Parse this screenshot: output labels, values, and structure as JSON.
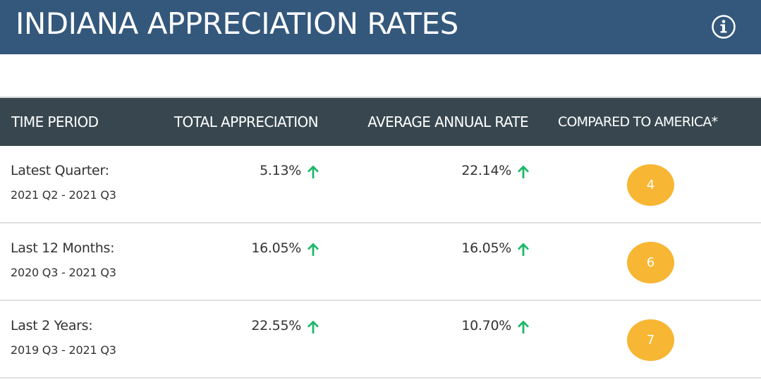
{
  "header": {
    "title": "INDIANA APPRECIATION RATES",
    "info_icon": "info-circle-icon"
  },
  "table": {
    "columns": [
      "TIME PERIOD",
      "TOTAL APPRECIATION",
      "AVERAGE ANNUAL RATE",
      "COMPARED TO AMERICA*"
    ],
    "rows": [
      {
        "period": "Latest Quarter:",
        "range": "2021 Q2 - 2021 Q3",
        "total": "5.13%",
        "total_trend": "arrow-up-icon",
        "rate": "22.14%",
        "rate_trend": "arrow-up-icon",
        "rank": "4"
      },
      {
        "period": "Last 12 Months:",
        "range": "2020 Q3 - 2021 Q3",
        "total": "16.05%",
        "total_trend": "arrow-up-icon",
        "rate": "16.05%",
        "rate_trend": "arrow-up-icon",
        "rank": "6"
      },
      {
        "period": "Last 2 Years:",
        "range": "2019 Q3 - 2021 Q3",
        "total": "22.55%",
        "total_trend": "arrow-up-icon",
        "rate": "10.70%",
        "rate_trend": "arrow-up-icon",
        "rank": "7"
      }
    ]
  },
  "colors": {
    "title_bar": "#34587c",
    "table_header": "#38474f",
    "trend_up": "#1fb86a",
    "rank_badge": "#f7b633"
  }
}
